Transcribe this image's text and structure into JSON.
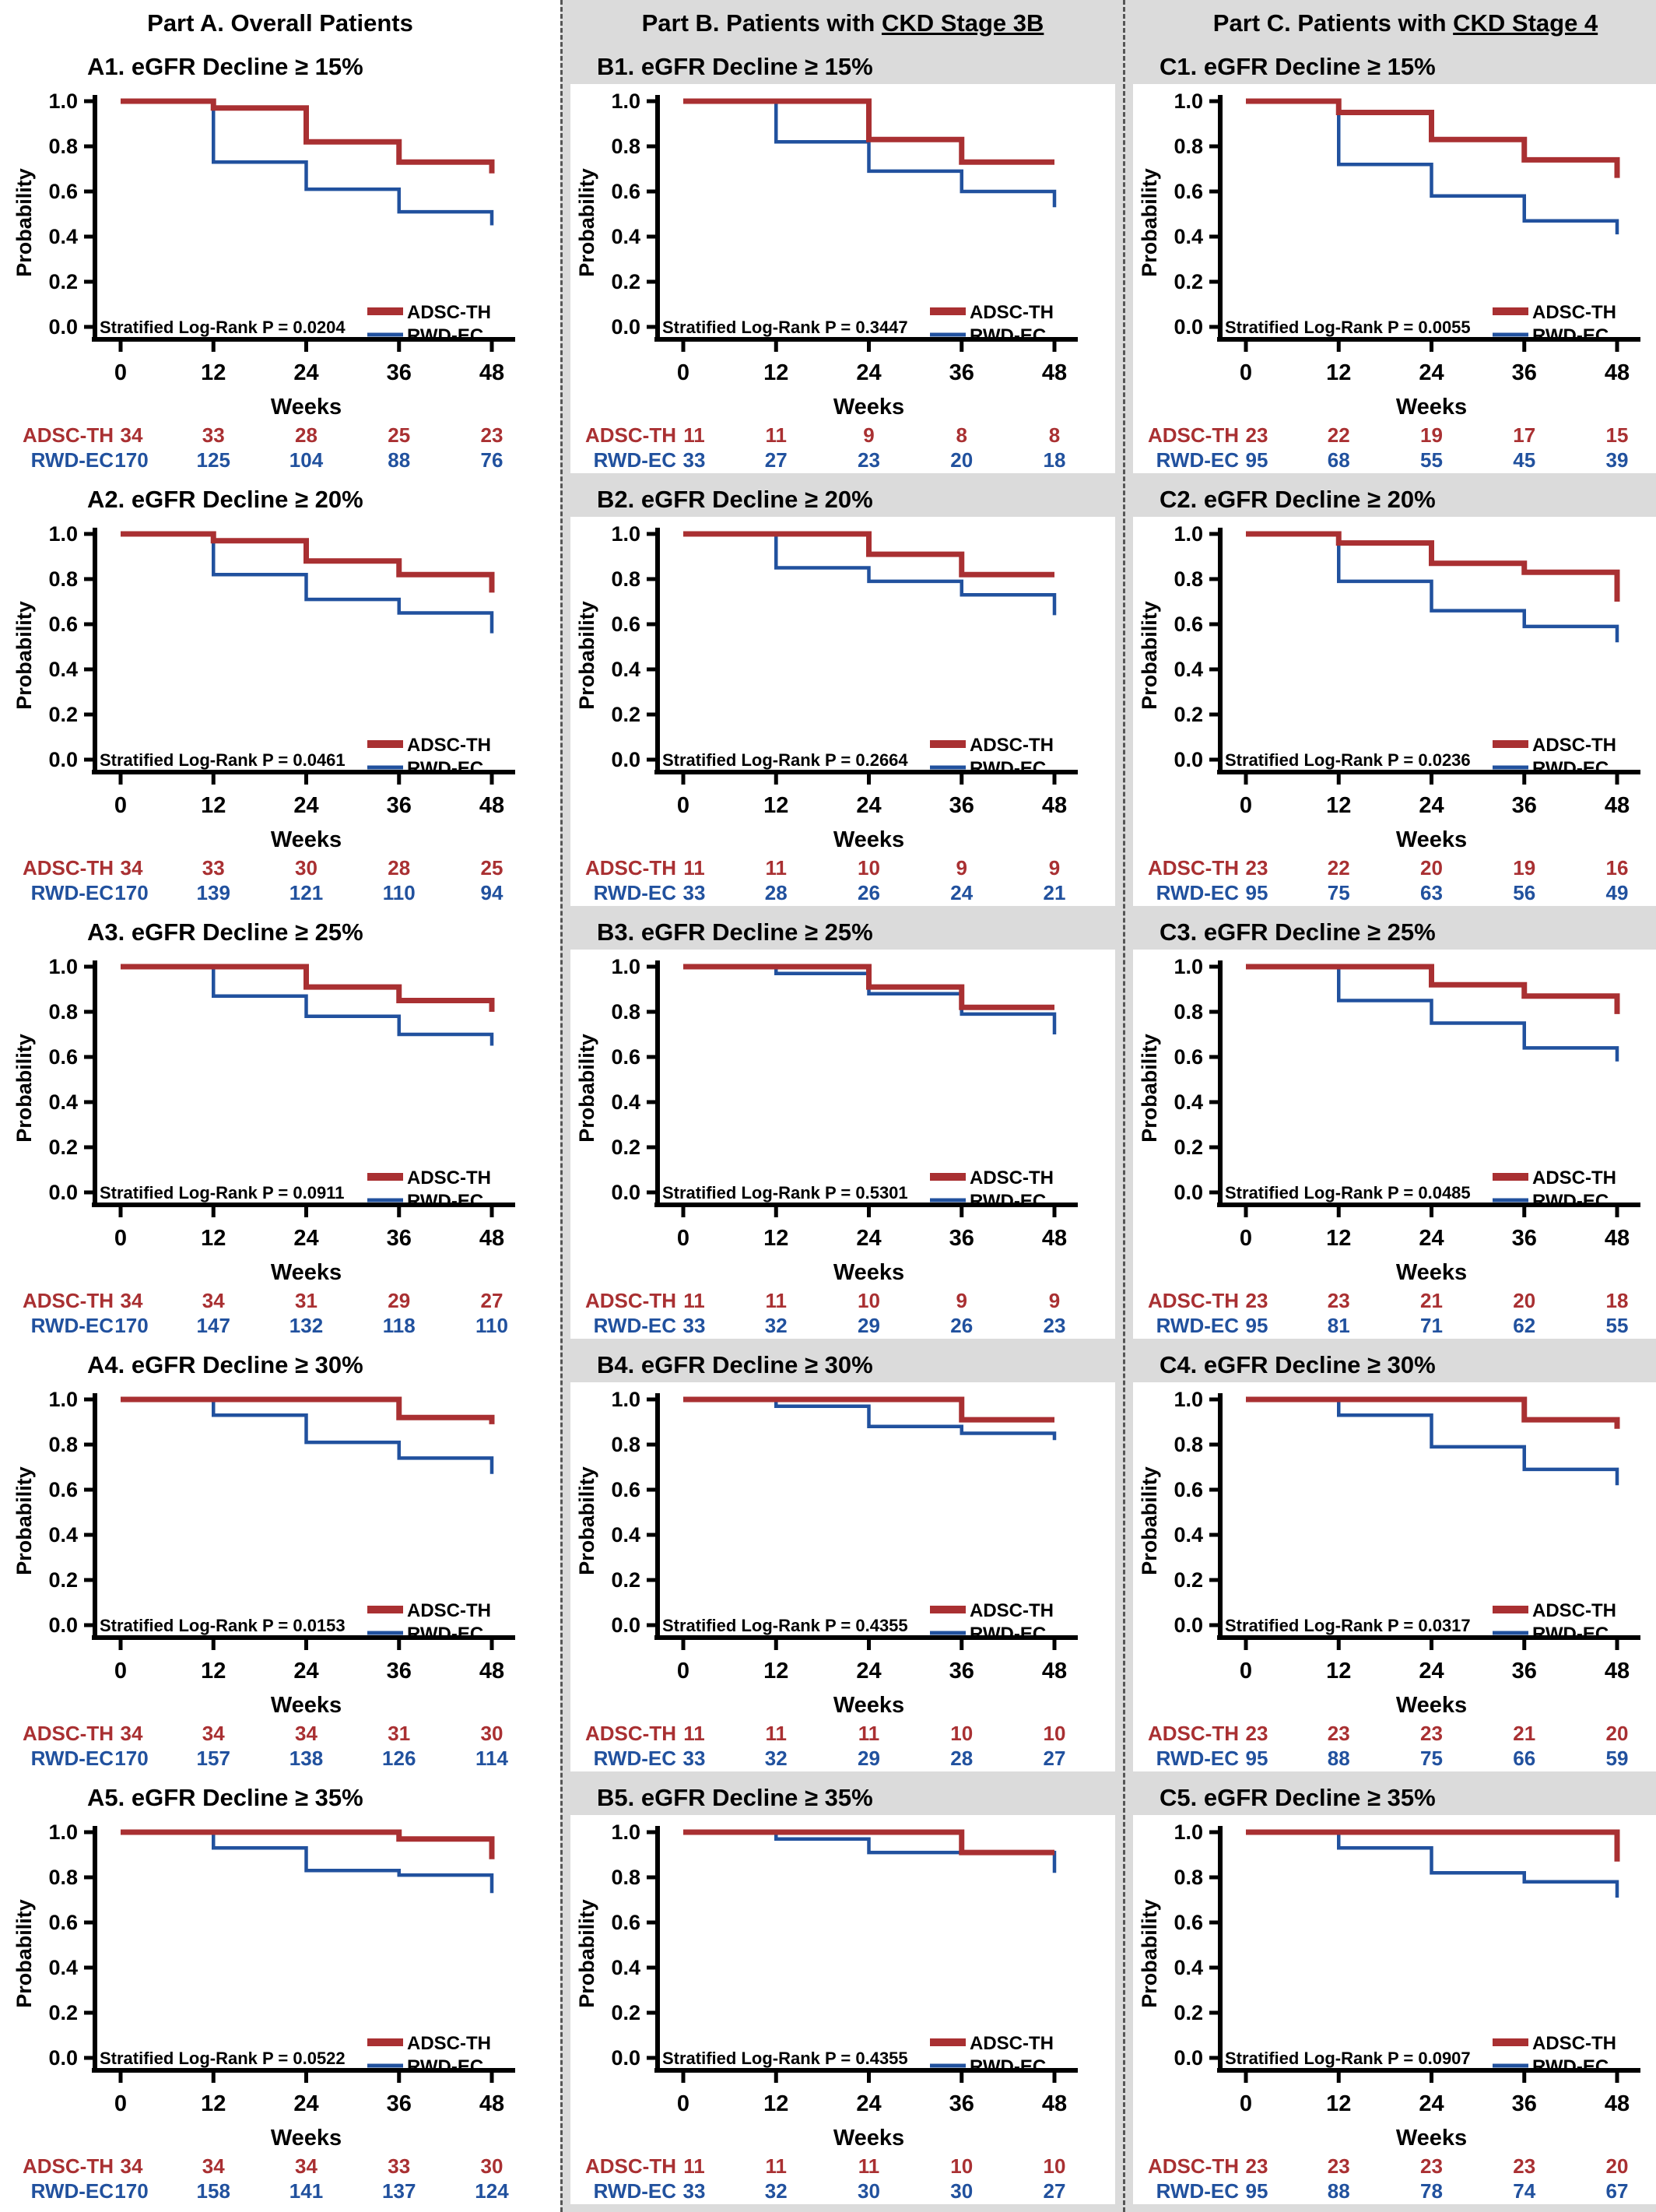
{
  "figure": {
    "columns": [
      {
        "id": "A",
        "header": {
          "before": "Part A. Overall Patients",
          "underlined": ""
        }
      },
      {
        "id": "B",
        "header": {
          "before": "Part B. Patients with ",
          "underlined": "CKD Stage 3B"
        }
      },
      {
        "id": "C",
        "header": {
          "before": "Part C. Patients with ",
          "underlined": "CKD Stage 4"
        }
      }
    ],
    "colors": {
      "adsc": "#a93032",
      "rwd": "#21519e",
      "axis": "#000000",
      "panel_bg": "#ffffff",
      "column_bg": "#dbdbdb"
    }
  },
  "shared": {
    "ylabel": "Probability",
    "xlabel": "Weeks",
    "y_ticks": [
      "1.0",
      "0.8",
      "0.6",
      "0.4",
      "0.2",
      "0.0"
    ],
    "x_ticks": [
      0,
      12,
      24,
      36,
      48
    ],
    "legend": [
      {
        "name": "ADSC-TH",
        "color": "#a93032"
      },
      {
        "name": "RWD-EC",
        "color": "#21519e"
      }
    ],
    "ylim": [
      0,
      1
    ],
    "xlim": [
      0,
      48
    ],
    "grid": "off",
    "legend_position": "bottom-right"
  },
  "chart_data": [
    {
      "id": "A1",
      "column": "A",
      "type": "line",
      "title": "A1. eGFR Decline ≥ 15%",
      "pvalue_label": "Stratified Log-Rank P = 0.0204",
      "series": [
        {
          "name": "ADSC-TH",
          "color": "#a93032",
          "levels": [
            1.0,
            0.97,
            0.82,
            0.73
          ],
          "end": 0.68
        },
        {
          "name": "RWD-EC",
          "color": "#21519e",
          "levels": [
            1.0,
            0.73,
            0.61,
            0.51
          ],
          "end": 0.45
        }
      ],
      "risk": {
        "weeks": [
          0,
          12,
          24,
          36,
          48
        ],
        "rows": [
          {
            "name": "ADSC-TH",
            "counts": [
              34,
              33,
              28,
              25,
              23
            ]
          },
          {
            "name": "RWD-EC",
            "counts": [
              170,
              125,
              104,
              88,
              76
            ]
          }
        ]
      }
    },
    {
      "id": "B1",
      "column": "B",
      "type": "line",
      "title": "B1. eGFR Decline ≥ 15%",
      "pvalue_label": "Stratified Log-Rank P = 0.3447",
      "series": [
        {
          "name": "ADSC-TH",
          "color": "#a93032",
          "levels": [
            1.0,
            1.0,
            0.83,
            0.73
          ],
          "end": 0.73
        },
        {
          "name": "RWD-EC",
          "color": "#21519e",
          "levels": [
            1.0,
            0.82,
            0.69,
            0.6
          ],
          "end": 0.53
        }
      ],
      "risk": {
        "weeks": [
          0,
          12,
          24,
          36,
          48
        ],
        "rows": [
          {
            "name": "ADSC-TH",
            "counts": [
              11,
              11,
              9,
              8,
              8
            ]
          },
          {
            "name": "RWD-EC",
            "counts": [
              33,
              27,
              23,
              20,
              18
            ]
          }
        ]
      }
    },
    {
      "id": "C1",
      "column": "C",
      "type": "line",
      "title": "C1. eGFR Decline ≥ 15%",
      "pvalue_label": "Stratified Log-Rank P = 0.0055",
      "series": [
        {
          "name": "ADSC-TH",
          "color": "#a93032",
          "levels": [
            1.0,
            0.95,
            0.83,
            0.74
          ],
          "end": 0.66
        },
        {
          "name": "RWD-EC",
          "color": "#21519e",
          "levels": [
            1.0,
            0.72,
            0.58,
            0.47
          ],
          "end": 0.41
        }
      ],
      "risk": {
        "weeks": [
          0,
          12,
          24,
          36,
          48
        ],
        "rows": [
          {
            "name": "ADSC-TH",
            "counts": [
              23,
              22,
              19,
              17,
              15
            ]
          },
          {
            "name": "RWD-EC",
            "counts": [
              95,
              68,
              55,
              45,
              39
            ]
          }
        ]
      }
    },
    {
      "id": "A2",
      "column": "A",
      "type": "line",
      "title": "A2. eGFR Decline ≥ 20%",
      "pvalue_label": "Stratified Log-Rank P = 0.0461",
      "series": [
        {
          "name": "ADSC-TH",
          "color": "#a93032",
          "levels": [
            1.0,
            0.97,
            0.88,
            0.82
          ],
          "end": 0.74
        },
        {
          "name": "RWD-EC",
          "color": "#21519e",
          "levels": [
            1.0,
            0.82,
            0.71,
            0.65
          ],
          "end": 0.56
        }
      ],
      "risk": {
        "weeks": [
          0,
          12,
          24,
          36,
          48
        ],
        "rows": [
          {
            "name": "ADSC-TH",
            "counts": [
              34,
              33,
              30,
              28,
              25
            ]
          },
          {
            "name": "RWD-EC",
            "counts": [
              170,
              139,
              121,
              110,
              94
            ]
          }
        ]
      }
    },
    {
      "id": "B2",
      "column": "B",
      "type": "line",
      "title": "B2. eGFR Decline ≥ 20%",
      "pvalue_label": "Stratified Log-Rank P = 0.2664",
      "series": [
        {
          "name": "ADSC-TH",
          "color": "#a93032",
          "levels": [
            1.0,
            1.0,
            0.91,
            0.82
          ],
          "end": 0.82
        },
        {
          "name": "RWD-EC",
          "color": "#21519e",
          "levels": [
            1.0,
            0.85,
            0.79,
            0.73
          ],
          "end": 0.64
        }
      ],
      "risk": {
        "weeks": [
          0,
          12,
          24,
          36,
          48
        ],
        "rows": [
          {
            "name": "ADSC-TH",
            "counts": [
              11,
              11,
              10,
              9,
              9
            ]
          },
          {
            "name": "RWD-EC",
            "counts": [
              33,
              28,
              26,
              24,
              21
            ]
          }
        ]
      }
    },
    {
      "id": "C2",
      "column": "C",
      "type": "line",
      "title": "C2. eGFR Decline ≥ 20%",
      "pvalue_label": "Stratified Log-Rank P = 0.0236",
      "series": [
        {
          "name": "ADSC-TH",
          "color": "#a93032",
          "levels": [
            1.0,
            0.96,
            0.87,
            0.83
          ],
          "end": 0.7
        },
        {
          "name": "RWD-EC",
          "color": "#21519e",
          "levels": [
            1.0,
            0.79,
            0.66,
            0.59
          ],
          "end": 0.52
        }
      ],
      "risk": {
        "weeks": [
          0,
          12,
          24,
          36,
          48
        ],
        "rows": [
          {
            "name": "ADSC-TH",
            "counts": [
              23,
              22,
              20,
              19,
              16
            ]
          },
          {
            "name": "RWD-EC",
            "counts": [
              95,
              75,
              63,
              56,
              49
            ]
          }
        ]
      }
    },
    {
      "id": "A3",
      "column": "A",
      "type": "line",
      "title": "A3. eGFR Decline ≥ 25%",
      "pvalue_label": "Stratified Log-Rank P = 0.0911",
      "series": [
        {
          "name": "ADSC-TH",
          "color": "#a93032",
          "levels": [
            1.0,
            1.0,
            0.91,
            0.85
          ],
          "end": 0.8
        },
        {
          "name": "RWD-EC",
          "color": "#21519e",
          "levels": [
            1.0,
            0.87,
            0.78,
            0.7
          ],
          "end": 0.65
        }
      ],
      "risk": {
        "weeks": [
          0,
          12,
          24,
          36,
          48
        ],
        "rows": [
          {
            "name": "ADSC-TH",
            "counts": [
              34,
              34,
              31,
              29,
              27
            ]
          },
          {
            "name": "RWD-EC",
            "counts": [
              170,
              147,
              132,
              118,
              110
            ]
          }
        ]
      }
    },
    {
      "id": "B3",
      "column": "B",
      "type": "line",
      "title": "B3. eGFR Decline ≥ 25%",
      "pvalue_label": "Stratified Log-Rank P = 0.5301",
      "series": [
        {
          "name": "ADSC-TH",
          "color": "#a93032",
          "levels": [
            1.0,
            1.0,
            0.91,
            0.82
          ],
          "end": 0.82
        },
        {
          "name": "RWD-EC",
          "color": "#21519e",
          "levels": [
            1.0,
            0.97,
            0.88,
            0.79
          ],
          "end": 0.7
        }
      ],
      "risk": {
        "weeks": [
          0,
          12,
          24,
          36,
          48
        ],
        "rows": [
          {
            "name": "ADSC-TH",
            "counts": [
              11,
              11,
              10,
              9,
              9
            ]
          },
          {
            "name": "RWD-EC",
            "counts": [
              33,
              32,
              29,
              26,
              23
            ]
          }
        ]
      }
    },
    {
      "id": "C3",
      "column": "C",
      "type": "line",
      "title": "C3. eGFR Decline ≥ 25%",
      "pvalue_label": "Stratified Log-Rank P = 0.0485",
      "series": [
        {
          "name": "ADSC-TH",
          "color": "#a93032",
          "levels": [
            1.0,
            1.0,
            0.92,
            0.87
          ],
          "end": 0.79
        },
        {
          "name": "RWD-EC",
          "color": "#21519e",
          "levels": [
            1.0,
            0.85,
            0.75,
            0.64
          ],
          "end": 0.58
        }
      ],
      "risk": {
        "weeks": [
          0,
          12,
          24,
          36,
          48
        ],
        "rows": [
          {
            "name": "ADSC-TH",
            "counts": [
              23,
              23,
              21,
              20,
              18
            ]
          },
          {
            "name": "RWD-EC",
            "counts": [
              95,
              81,
              71,
              62,
              55
            ]
          }
        ]
      }
    },
    {
      "id": "A4",
      "column": "A",
      "type": "line",
      "title": "A4. eGFR Decline ≥ 30%",
      "pvalue_label": "Stratified Log-Rank P = 0.0153",
      "series": [
        {
          "name": "ADSC-TH",
          "color": "#a93032",
          "levels": [
            1.0,
            1.0,
            1.0,
            0.92
          ],
          "end": 0.89
        },
        {
          "name": "RWD-EC",
          "color": "#21519e",
          "levels": [
            1.0,
            0.93,
            0.81,
            0.74
          ],
          "end": 0.67
        }
      ],
      "risk": {
        "weeks": [
          0,
          12,
          24,
          36,
          48
        ],
        "rows": [
          {
            "name": "ADSC-TH",
            "counts": [
              34,
              34,
              34,
              31,
              30
            ]
          },
          {
            "name": "RWD-EC",
            "counts": [
              170,
              157,
              138,
              126,
              114
            ]
          }
        ]
      }
    },
    {
      "id": "B4",
      "column": "B",
      "type": "line",
      "title": "B4. eGFR Decline ≥ 30%",
      "pvalue_label": "Stratified Log-Rank P = 0.4355",
      "series": [
        {
          "name": "ADSC-TH",
          "color": "#a93032",
          "levels": [
            1.0,
            1.0,
            1.0,
            0.91
          ],
          "end": 0.91
        },
        {
          "name": "RWD-EC",
          "color": "#21519e",
          "levels": [
            1.0,
            0.97,
            0.88,
            0.85
          ],
          "end": 0.82
        }
      ],
      "risk": {
        "weeks": [
          0,
          12,
          24,
          36,
          48
        ],
        "rows": [
          {
            "name": "ADSC-TH",
            "counts": [
              11,
              11,
              11,
              10,
              10
            ]
          },
          {
            "name": "RWD-EC",
            "counts": [
              33,
              32,
              29,
              28,
              27
            ]
          }
        ]
      }
    },
    {
      "id": "C4",
      "column": "C",
      "type": "line",
      "title": "C4. eGFR Decline ≥ 30%",
      "pvalue_label": "Stratified Log-Rank P = 0.0317",
      "series": [
        {
          "name": "ADSC-TH",
          "color": "#a93032",
          "levels": [
            1.0,
            1.0,
            1.0,
            0.91
          ],
          "end": 0.87
        },
        {
          "name": "RWD-EC",
          "color": "#21519e",
          "levels": [
            1.0,
            0.93,
            0.79,
            0.69
          ],
          "end": 0.62
        }
      ],
      "risk": {
        "weeks": [
          0,
          12,
          24,
          36,
          48
        ],
        "rows": [
          {
            "name": "ADSC-TH",
            "counts": [
              23,
              23,
              23,
              21,
              20
            ]
          },
          {
            "name": "RWD-EC",
            "counts": [
              95,
              88,
              75,
              66,
              59
            ]
          }
        ]
      }
    },
    {
      "id": "A5",
      "column": "A",
      "type": "line",
      "title": "A5. eGFR Decline ≥ 35%",
      "pvalue_label": "Stratified Log-Rank P = 0.0522",
      "series": [
        {
          "name": "ADSC-TH",
          "color": "#a93032",
          "levels": [
            1.0,
            1.0,
            1.0,
            0.97
          ],
          "end": 0.88
        },
        {
          "name": "RWD-EC",
          "color": "#21519e",
          "levels": [
            1.0,
            0.93,
            0.83,
            0.81
          ],
          "end": 0.73
        }
      ],
      "risk": {
        "weeks": [
          0,
          12,
          24,
          36,
          48
        ],
        "rows": [
          {
            "name": "ADSC-TH",
            "counts": [
              34,
              34,
              34,
              33,
              30
            ]
          },
          {
            "name": "RWD-EC",
            "counts": [
              170,
              158,
              141,
              137,
              124
            ]
          }
        ]
      }
    },
    {
      "id": "B5",
      "column": "B",
      "type": "line",
      "title": "B5. eGFR Decline ≥ 35%",
      "pvalue_label": "Stratified Log-Rank P = 0.4355",
      "series": [
        {
          "name": "ADSC-TH",
          "color": "#a93032",
          "levels": [
            1.0,
            1.0,
            1.0,
            0.91
          ],
          "end": 0.91
        },
        {
          "name": "RWD-EC",
          "color": "#21519e",
          "levels": [
            1.0,
            0.97,
            0.91,
            0.91
          ],
          "end": 0.82
        }
      ],
      "risk": {
        "weeks": [
          0,
          12,
          24,
          36,
          48
        ],
        "rows": [
          {
            "name": "ADSC-TH",
            "counts": [
              11,
              11,
              11,
              10,
              10
            ]
          },
          {
            "name": "RWD-EC",
            "counts": [
              33,
              32,
              30,
              30,
              27
            ]
          }
        ]
      }
    },
    {
      "id": "C5",
      "column": "C",
      "type": "line",
      "title": "C5. eGFR Decline ≥ 35%",
      "pvalue_label": "Stratified Log-Rank P = 0.0907",
      "series": [
        {
          "name": "ADSC-TH",
          "color": "#a93032",
          "levels": [
            1.0,
            1.0,
            1.0,
            1.0
          ],
          "end": 0.87
        },
        {
          "name": "RWD-EC",
          "color": "#21519e",
          "levels": [
            1.0,
            0.93,
            0.82,
            0.78
          ],
          "end": 0.71
        }
      ],
      "risk": {
        "weeks": [
          0,
          12,
          24,
          36,
          48
        ],
        "rows": [
          {
            "name": "ADSC-TH",
            "counts": [
              23,
              23,
              23,
              23,
              20
            ]
          },
          {
            "name": "RWD-EC",
            "counts": [
              95,
              88,
              78,
              74,
              67
            ]
          }
        ]
      }
    }
  ]
}
